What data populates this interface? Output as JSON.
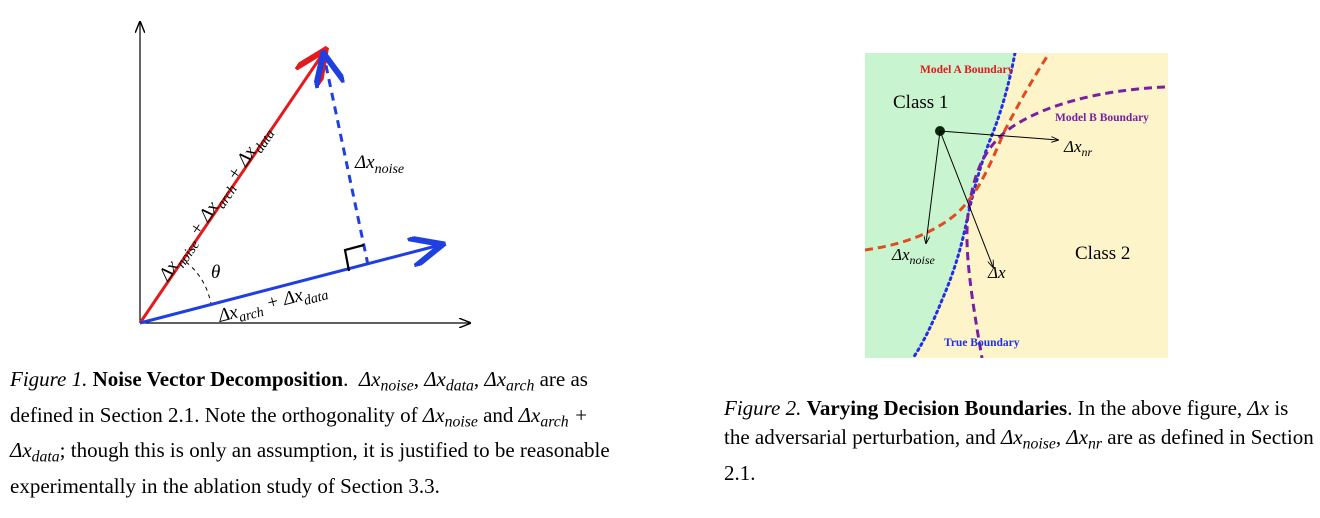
{
  "figure1": {
    "diagram": {
      "labels": {
        "sum_all": "Δx_{noise} + Δx_{arch} + Δx_{data}",
        "noise": "Δx_{noise}",
        "theta": "θ",
        "arch_data": "Δx_{arch} + Δx_{data}"
      },
      "colors": {
        "red": "#e41a1c",
        "blue": "#1f3fe0"
      }
    },
    "caption": {
      "label": "Figure 1.",
      "title": "Noise Vector Decomposition",
      "body_1": "are as defined in Section 2.1. Note the orthogonality of",
      "and": "and",
      "body_2": "; though this is only an assumption, it is justified to be reasonable experimentally in the ablation study of Section 3.3.",
      "terms": {
        "noise": "Δx",
        "noise_sub": "noise",
        "data": "Δx",
        "data_sub": "data",
        "arch": "Δx",
        "arch_sub": "arch"
      }
    }
  },
  "figure2": {
    "diagram": {
      "class1": "Class 1",
      "class2": "Class 2",
      "model_a": "Model A Boundary",
      "model_b": "Model B Boundary",
      "true_boundary": "True Boundary",
      "dx_nr": "Δx_{nr}",
      "dx_noise": "Δx_{noise}",
      "dx": "Δx",
      "colors": {
        "class1_bg": "#c8f5cf",
        "class2_bg": "#fdf5c9",
        "model_a": "#e24b22",
        "model_b": "#7a1fa2",
        "true": "#2030e8"
      }
    },
    "caption": {
      "label": "Figure 2.",
      "title": "Varying Decision Boundaries",
      "body_1": "In the above figure,",
      "body_2": "is the adversarial perturbation, and",
      "body_3": "are as defined in Section 2.1.",
      "terms": {
        "dx": "Δx",
        "noise": "Δx",
        "noise_sub": "noise",
        "nr": "Δx",
        "nr_sub": "nr"
      }
    }
  }
}
